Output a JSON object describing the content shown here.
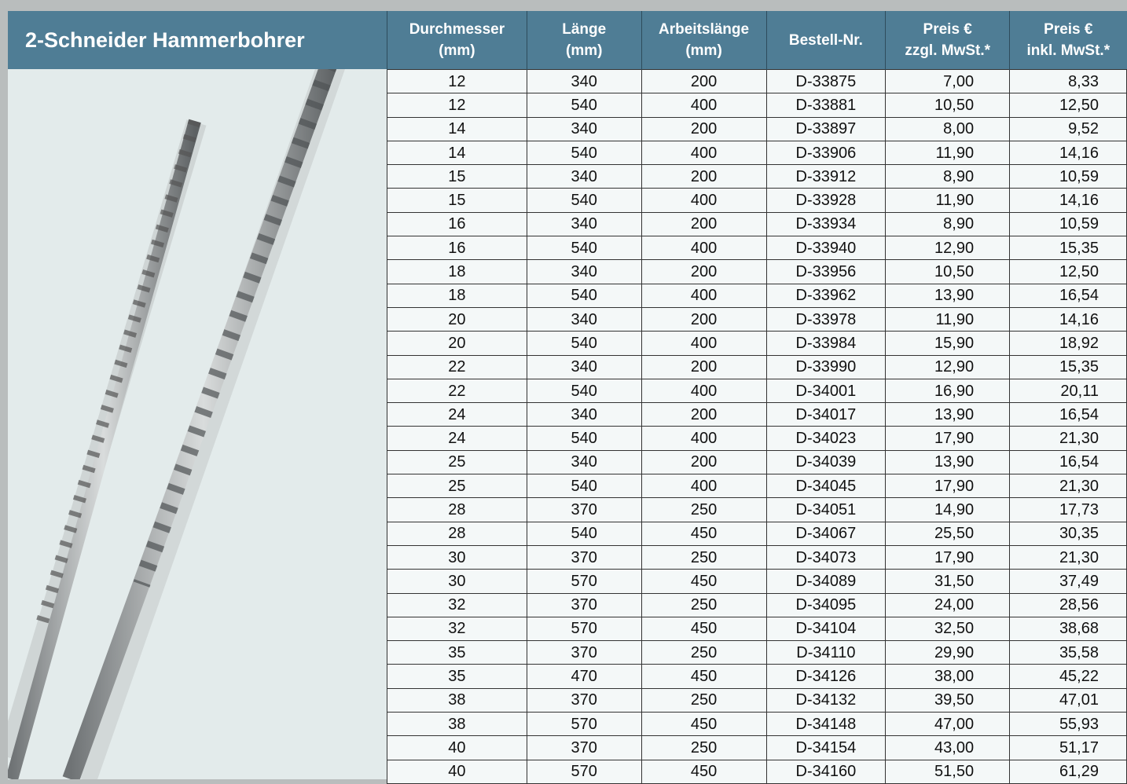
{
  "header": {
    "title": "2-Schneider Hammerbohrer"
  },
  "table": {
    "headers": [
      [
        "Durchmesser",
        "(mm)"
      ],
      [
        "Länge",
        "(mm)"
      ],
      [
        "Arbeitslänge",
        "(mm)"
      ],
      [
        "Bestell-Nr."
      ],
      [
        "Preis €",
        "zzgl. MwSt.*"
      ],
      [
        "Preis €",
        "inkl. MwSt.*"
      ]
    ],
    "rows": [
      [
        "12",
        "340",
        "200",
        "D-33875",
        "7,00",
        "8,33"
      ],
      [
        "12",
        "540",
        "400",
        "D-33881",
        "10,50",
        "12,50"
      ],
      [
        "14",
        "340",
        "200",
        "D-33897",
        "8,00",
        "9,52"
      ],
      [
        "14",
        "540",
        "400",
        "D-33906",
        "11,90",
        "14,16"
      ],
      [
        "15",
        "340",
        "200",
        "D-33912",
        "8,90",
        "10,59"
      ],
      [
        "15",
        "540",
        "400",
        "D-33928",
        "11,90",
        "14,16"
      ],
      [
        "16",
        "340",
        "200",
        "D-33934",
        "8,90",
        "10,59"
      ],
      [
        "16",
        "540",
        "400",
        "D-33940",
        "12,90",
        "15,35"
      ],
      [
        "18",
        "340",
        "200",
        "D-33956",
        "10,50",
        "12,50"
      ],
      [
        "18",
        "540",
        "400",
        "D-33962",
        "13,90",
        "16,54"
      ],
      [
        "20",
        "340",
        "200",
        "D-33978",
        "11,90",
        "14,16"
      ],
      [
        "20",
        "540",
        "400",
        "D-33984",
        "15,90",
        "18,92"
      ],
      [
        "22",
        "340",
        "200",
        "D-33990",
        "12,90",
        "15,35"
      ],
      [
        "22",
        "540",
        "400",
        "D-34001",
        "16,90",
        "20,11"
      ],
      [
        "24",
        "340",
        "200",
        "D-34017",
        "13,90",
        "16,54"
      ],
      [
        "24",
        "540",
        "400",
        "D-34023",
        "17,90",
        "21,30"
      ],
      [
        "25",
        "340",
        "200",
        "D-34039",
        "13,90",
        "16,54"
      ],
      [
        "25",
        "540",
        "400",
        "D-34045",
        "17,90",
        "21,30"
      ],
      [
        "28",
        "370",
        "250",
        "D-34051",
        "14,90",
        "17,73"
      ],
      [
        "28",
        "540",
        "450",
        "D-34067",
        "25,50",
        "30,35"
      ],
      [
        "30",
        "370",
        "250",
        "D-34073",
        "17,90",
        "21,30"
      ],
      [
        "30",
        "570",
        "450",
        "D-34089",
        "31,50",
        "37,49"
      ],
      [
        "32",
        "370",
        "250",
        "D-34095",
        "24,00",
        "28,56"
      ],
      [
        "32",
        "570",
        "450",
        "D-34104",
        "32,50",
        "38,68"
      ],
      [
        "35",
        "370",
        "250",
        "D-34110",
        "29,90",
        "35,58"
      ],
      [
        "35",
        "470",
        "450",
        "D-34126",
        "38,00",
        "45,22"
      ],
      [
        "38",
        "370",
        "250",
        "D-34132",
        "39,50",
        "47,01"
      ],
      [
        "38",
        "570",
        "450",
        "D-34148",
        "47,00",
        "55,93"
      ],
      [
        "40",
        "370",
        "250",
        "D-34154",
        "43,00",
        "51,17"
      ],
      [
        "40",
        "570",
        "450",
        "D-34160",
        "51,50",
        "61,29"
      ]
    ]
  }
}
